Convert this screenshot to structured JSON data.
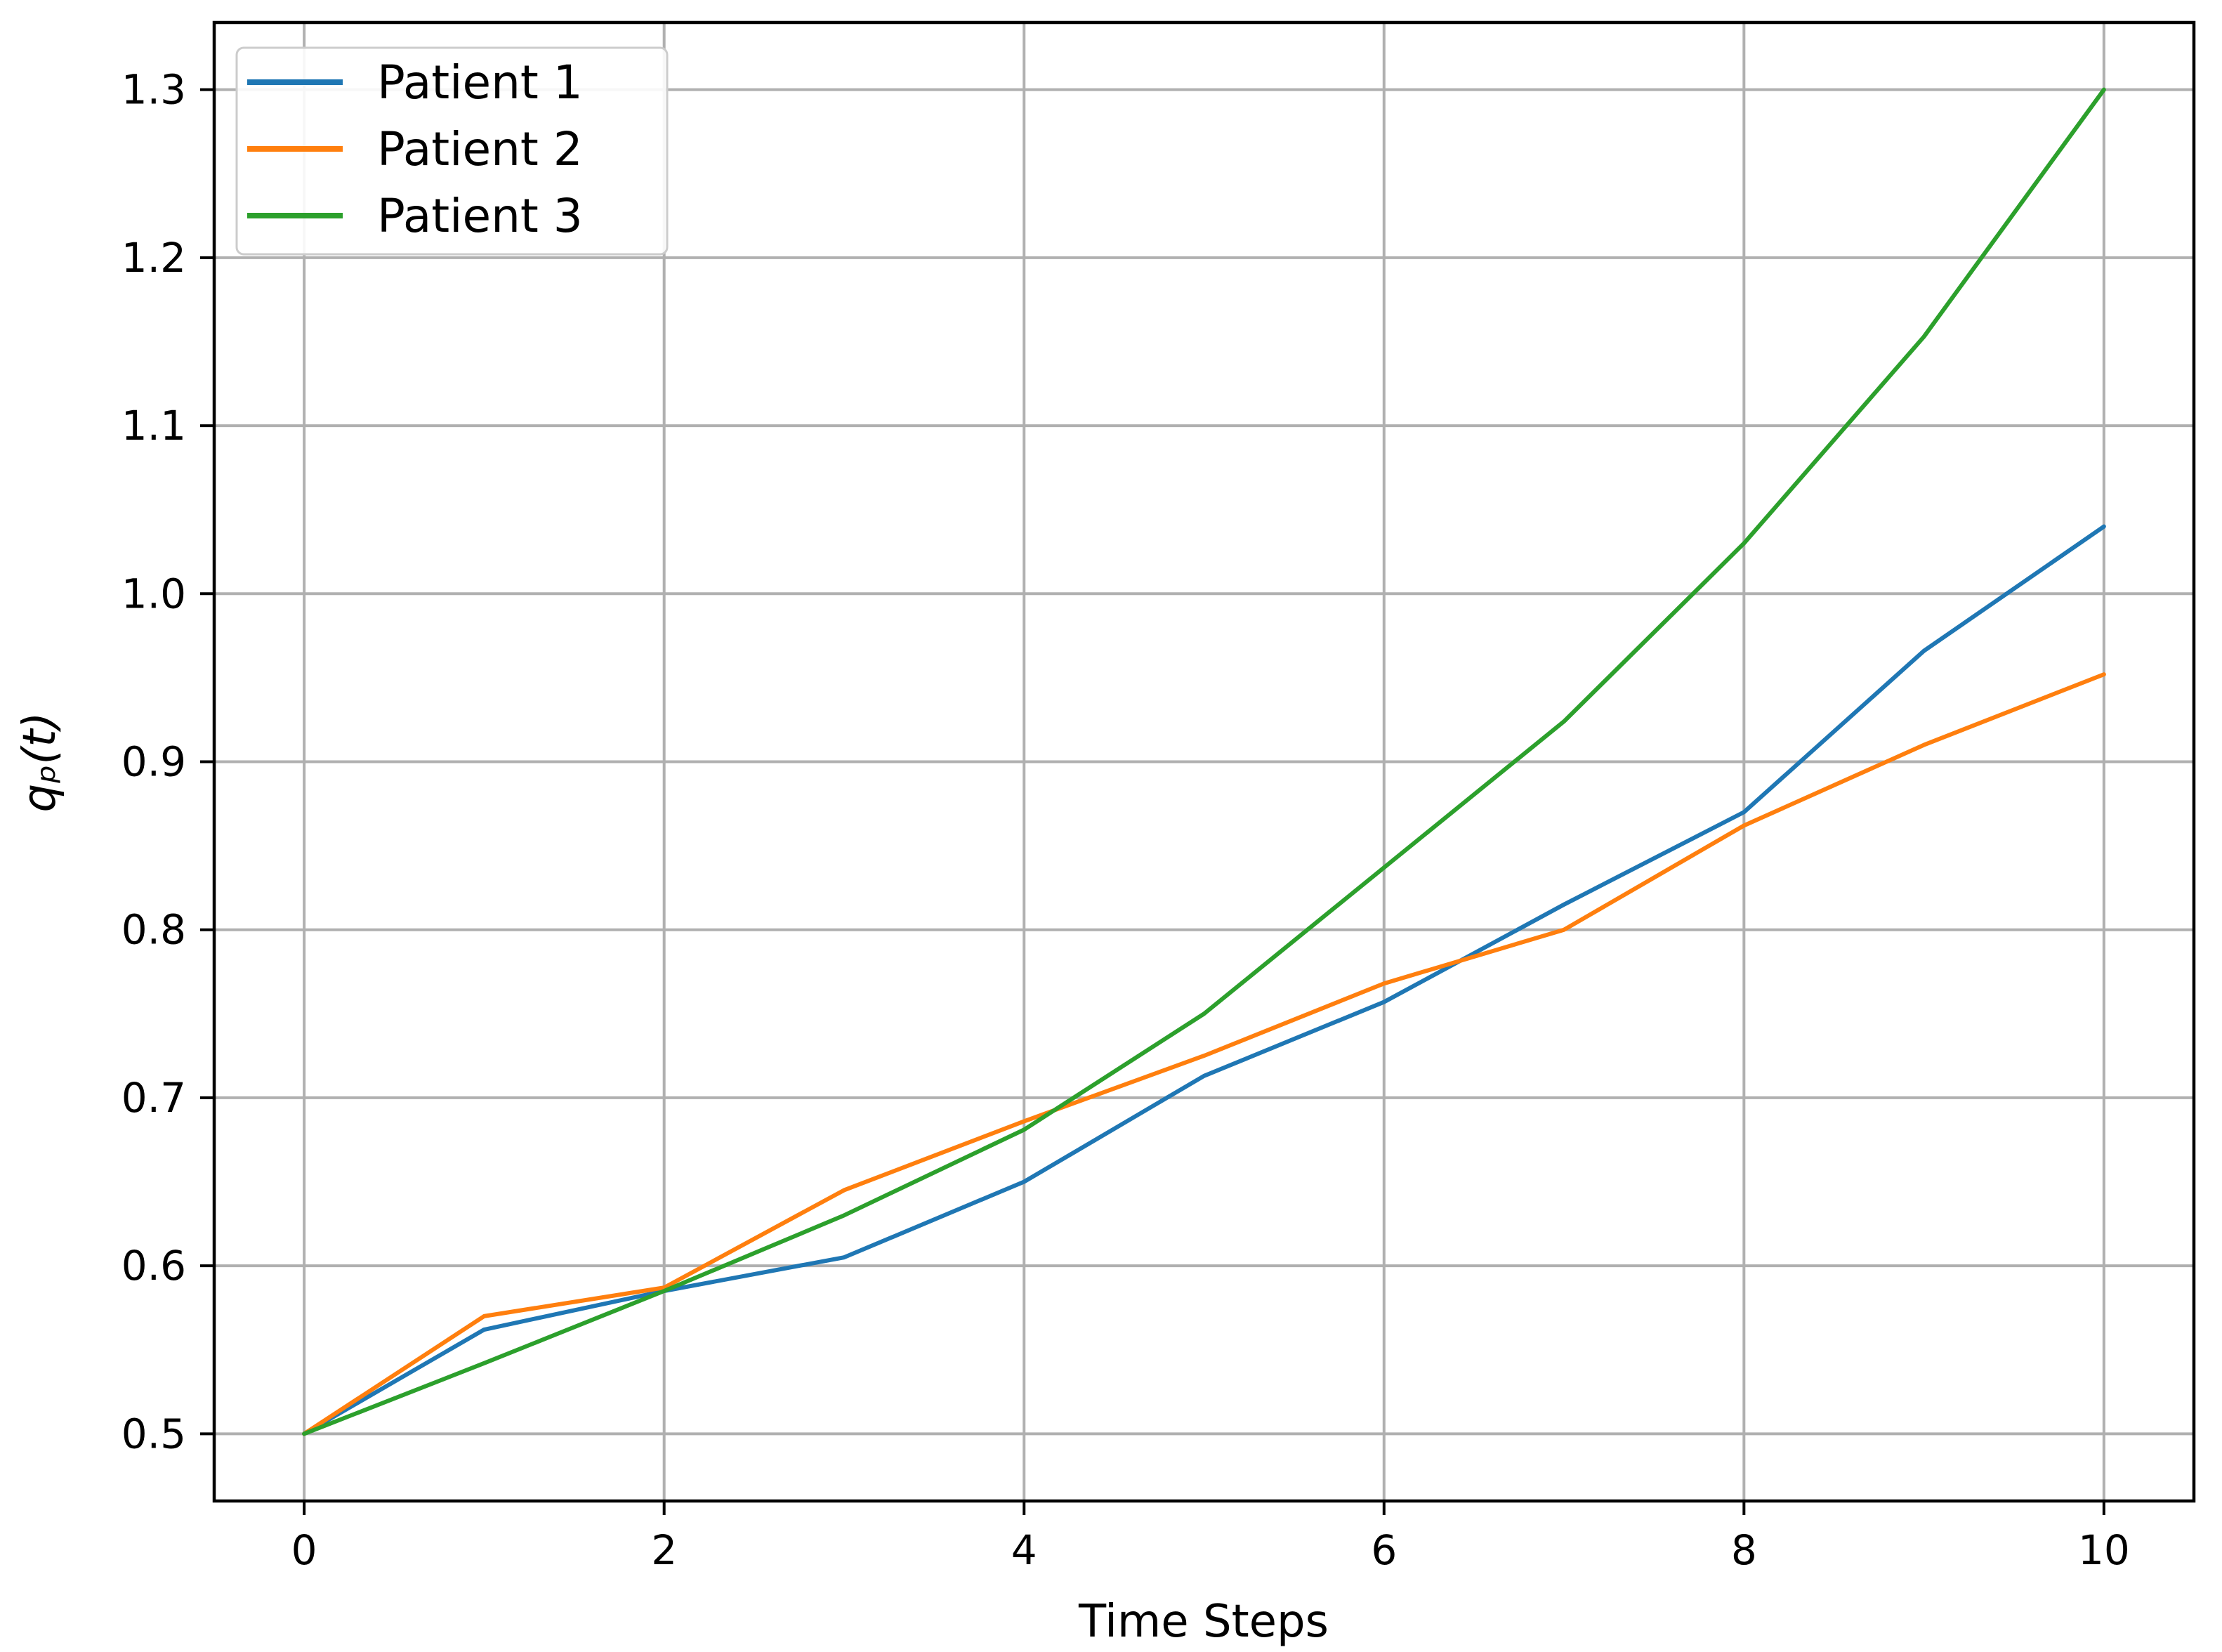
{
  "chart_data": {
    "type": "line",
    "title": "",
    "xlabel": "Time Steps",
    "ylabel": "qₚ(t)",
    "x": [
      0,
      1,
      2,
      3,
      4,
      5,
      6,
      7,
      8,
      9,
      10
    ],
    "series": [
      {
        "name": "Patient 1",
        "color": "#1f77b4",
        "values": [
          0.5,
          0.562,
          0.585,
          0.605,
          0.65,
          0.713,
          0.757,
          0.815,
          0.87,
          0.966,
          1.04
        ]
      },
      {
        "name": "Patient 2",
        "color": "#ff7f0e",
        "values": [
          0.5,
          0.57,
          0.587,
          0.645,
          0.686,
          0.725,
          0.768,
          0.8,
          0.862,
          0.91,
          0.952
        ]
      },
      {
        "name": "Patient 3",
        "color": "#2ca02c",
        "values": [
          0.5,
          0.542,
          0.585,
          0.63,
          0.681,
          0.75,
          0.837,
          0.924,
          1.03,
          1.153,
          1.3
        ]
      }
    ],
    "xlim": [
      -0.5,
      10.5
    ],
    "ylim": [
      0.46,
      1.34
    ],
    "xticks": [
      0,
      2,
      4,
      6,
      8,
      10
    ],
    "xticklabels": [
      "0",
      "2",
      "4",
      "6",
      "8",
      "10"
    ],
    "yticks": [
      0.5,
      0.6,
      0.7,
      0.8,
      0.9,
      1.0,
      1.1,
      1.2,
      1.3
    ],
    "yticklabels": [
      "0.5",
      "0.6",
      "0.7",
      "0.8",
      "0.9",
      "1.0",
      "1.1",
      "1.2",
      "1.3"
    ],
    "grid": true,
    "legend": {
      "position": "upper left",
      "entries": [
        "Patient 1",
        "Patient 2",
        "Patient 3"
      ]
    }
  },
  "colors": {
    "background": "#ffffff",
    "grid": "#b0b0b0",
    "axis": "#000000",
    "legend_border": "#cccccc",
    "series_blue": "#1f77b4",
    "series_orange": "#ff7f0e",
    "series_green": "#2ca02c"
  }
}
